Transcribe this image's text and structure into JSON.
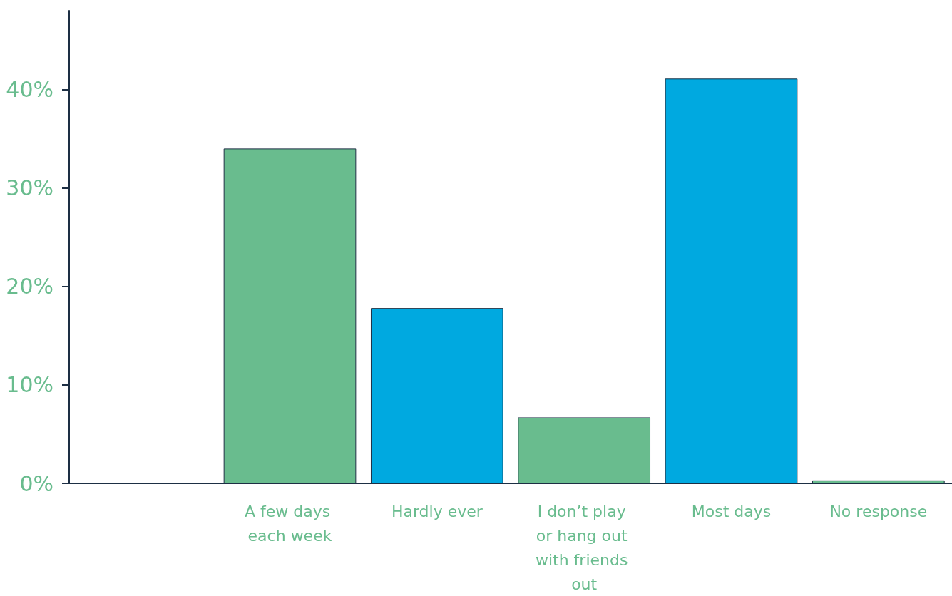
{
  "chart_data": {
    "type": "bar",
    "categories": [
      null,
      "A few days each week",
      "Hardly ever",
      "I don’t play or hang out with friends out",
      "Most days",
      "No response"
    ],
    "values": [
      null,
      34,
      17.8,
      6.7,
      41.1,
      0.3
    ],
    "colors": [
      "#69bc8e",
      "#69bc8e",
      "#00a9e0",
      "#69bc8e",
      "#00a9e0",
      "#69bc8e"
    ],
    "ylim": [
      0,
      48
    ],
    "yticks": [
      {
        "value": 0,
        "label": "0%"
      },
      {
        "value": 10,
        "label": "10%"
      },
      {
        "value": 20,
        "label": "20%"
      },
      {
        "value": 30,
        "label": "30%"
      },
      {
        "value": 40,
        "label": "40%"
      }
    ],
    "grid": false
  }
}
